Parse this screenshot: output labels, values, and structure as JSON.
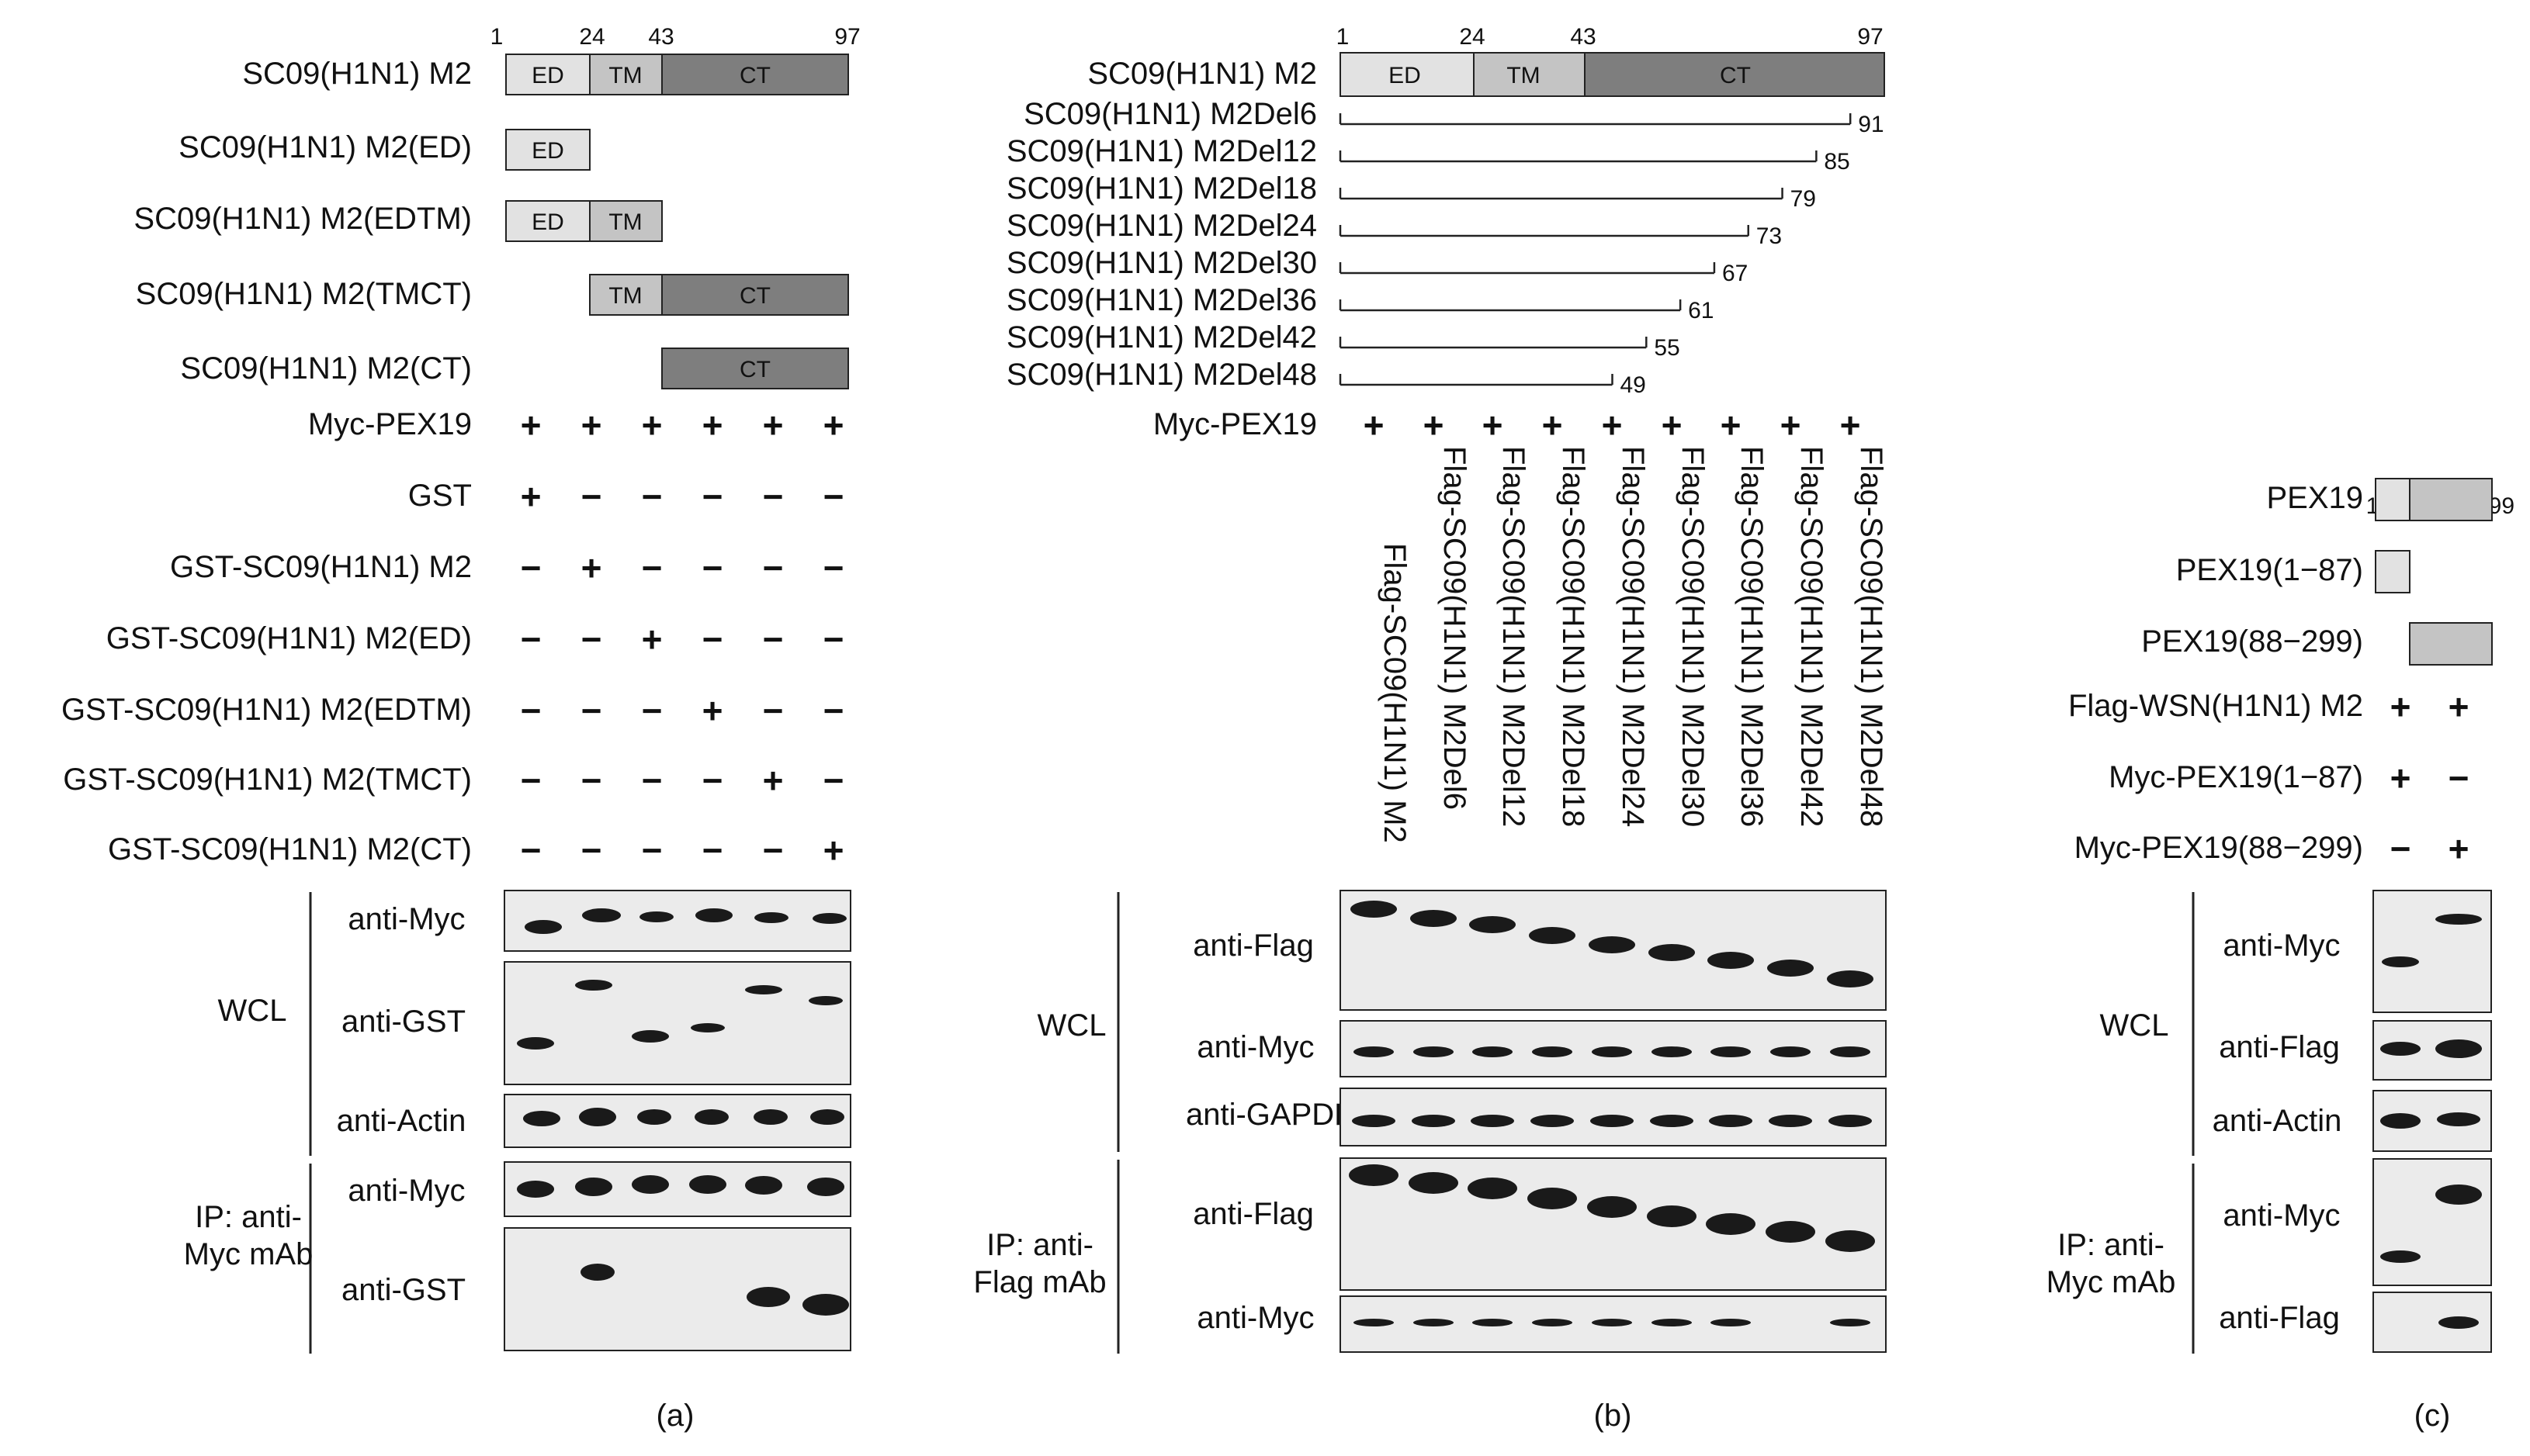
{
  "colors": {
    "ed": "#e2e2e2",
    "tm": "#c4c4c4",
    "ct": "#7e7e7e",
    "pex_n": "#e2e2e2",
    "pex_c": "#c4c4c4",
    "blot_bg": "#ebebeb",
    "band": "#1a1a1a"
  },
  "panel_a": {
    "constructs": [
      {
        "label": "SC09(H1N1) M2",
        "segments": [
          {
            "name": "ED",
            "start": 1,
            "end": 24
          },
          {
            "name": "TM",
            "start": 24,
            "end": 43
          },
          {
            "name": "CT",
            "start": 43,
            "end": 97
          }
        ]
      },
      {
        "label": "SC09(H1N1) M2(ED)",
        "segments": [
          {
            "name": "ED",
            "start": 1,
            "end": 24
          }
        ]
      },
      {
        "label": "SC09(H1N1) M2(EDTM)",
        "segments": [
          {
            "name": "ED",
            "start": 1,
            "end": 24
          },
          {
            "name": "TM",
            "start": 24,
            "end": 43
          }
        ]
      },
      {
        "label": "SC09(H1N1) M2(TMCT)",
        "segments": [
          {
            "name": "TM",
            "start": 24,
            "end": 43
          },
          {
            "name": "CT",
            "start": 43,
            "end": 97
          }
        ]
      },
      {
        "label": "SC09(H1N1) M2(CT)",
        "segments": [
          {
            "name": "CT",
            "start": 43,
            "end": 97
          }
        ]
      }
    ],
    "positions": [
      "1",
      "24",
      "43",
      "97"
    ],
    "treatments": [
      {
        "label": "Myc-PEX19",
        "signs": [
          "+",
          "+",
          "+",
          "+",
          "+",
          "+"
        ]
      },
      {
        "label": "GST",
        "signs": [
          "+",
          "−",
          "−",
          "−",
          "−",
          "−"
        ]
      },
      {
        "label": "GST-SC09(H1N1) M2",
        "signs": [
          "−",
          "+",
          "−",
          "−",
          "−",
          "−"
        ]
      },
      {
        "label": "GST-SC09(H1N1) M2(ED)",
        "signs": [
          "−",
          "−",
          "+",
          "−",
          "−",
          "−"
        ]
      },
      {
        "label": "GST-SC09(H1N1) M2(EDTM)",
        "signs": [
          "−",
          "−",
          "−",
          "+",
          "−",
          "−"
        ]
      },
      {
        "label": "GST-SC09(H1N1) M2(TMCT)",
        "signs": [
          "−",
          "−",
          "−",
          "−",
          "+",
          "−"
        ]
      },
      {
        "label": "GST-SC09(H1N1) M2(CT)",
        "signs": [
          "−",
          "−",
          "−",
          "−",
          "−",
          "+"
        ]
      }
    ],
    "group_wcl": "WCL",
    "group_ip": [
      "IP: anti-",
      "Myc mAb"
    ],
    "blots": [
      "anti-Myc",
      "anti-GST",
      "anti-Actin",
      "anti-Myc",
      "anti-GST"
    ],
    "caption": "(a)"
  },
  "panel_b": {
    "full_label": "SC09(H1N1) M2",
    "positions": [
      "1",
      "24",
      "43",
      "97"
    ],
    "deletions": [
      {
        "label": "SC09(H1N1) M2Del6",
        "end": "91"
      },
      {
        "label": "SC09(H1N1) M2Del12",
        "end": "85"
      },
      {
        "label": "SC09(H1N1) M2Del18",
        "end": "79"
      },
      {
        "label": "SC09(H1N1) M2Del24",
        "end": "73"
      },
      {
        "label": "SC09(H1N1) M2Del30",
        "end": "67"
      },
      {
        "label": "SC09(H1N1) M2Del36",
        "end": "61"
      },
      {
        "label": "SC09(H1N1) M2Del42",
        "end": "55"
      },
      {
        "label": "SC09(H1N1) M2Del48",
        "end": "49"
      }
    ],
    "myc_label": "Myc-PEX19",
    "myc_signs": [
      "+",
      "+",
      "+",
      "+",
      "+",
      "+",
      "+",
      "+",
      "+"
    ],
    "lanes": [
      "Flag-SC09(H1N1) M2",
      "Flag-SC09(H1N1) M2Del6",
      "Flag-SC09(H1N1) M2Del12",
      "Flag-SC09(H1N1) M2Del18",
      "Flag-SC09(H1N1) M2Del24",
      "Flag-SC09(H1N1) M2Del30",
      "Flag-SC09(H1N1) M2Del36",
      "Flag-SC09(H1N1) M2Del42",
      "Flag-SC09(H1N1) M2Del48"
    ],
    "group_wcl": "WCL",
    "group_ip": [
      "IP: anti-",
      "Flag mAb"
    ],
    "blots": [
      "anti-Flag",
      "anti-Myc",
      "anti-GAPDH",
      "anti-Flag",
      "anti-Myc"
    ],
    "caption": "(b)"
  },
  "panel_c": {
    "positions": [
      "1",
      "87",
      "299"
    ],
    "constructs": [
      "PEX19",
      "PEX19(1−87)",
      "PEX19(88−299)"
    ],
    "treatments": [
      {
        "label": "Flag-WSN(H1N1) M2",
        "signs": [
          "+",
          "+"
        ]
      },
      {
        "label": "Myc-PEX19(1−87)",
        "signs": [
          "+",
          "−"
        ]
      },
      {
        "label": "Myc-PEX19(88−299)",
        "signs": [
          "−",
          "+"
        ]
      }
    ],
    "group_wcl": "WCL",
    "group_ip": [
      "IP: anti-",
      "Myc mAb"
    ],
    "blots": [
      "anti-Myc",
      "anti-Flag",
      "anti-Actin",
      "anti-Myc",
      "anti-Flag"
    ],
    "caption": "(c)"
  }
}
